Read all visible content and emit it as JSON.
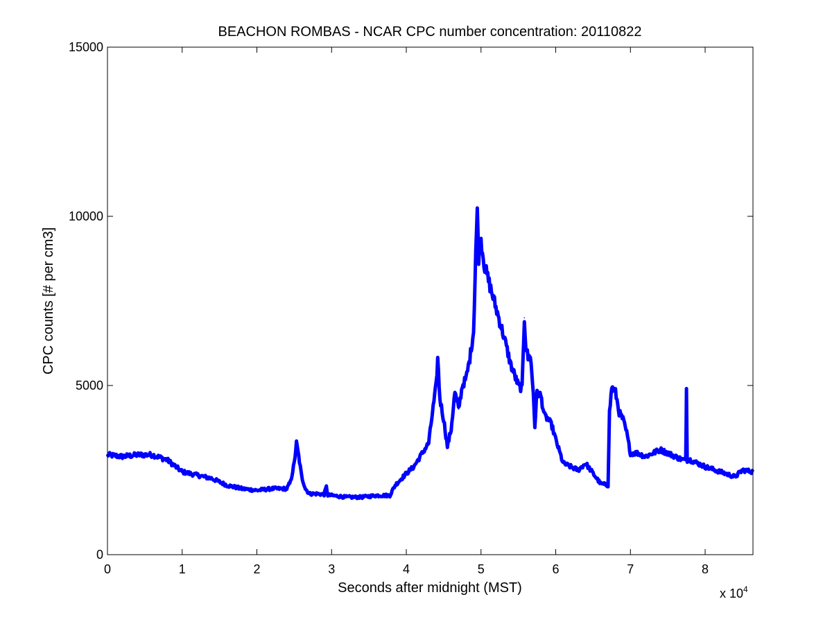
{
  "chart_data": {
    "type": "line",
    "title": "BEACHON ROMBAS - NCAR CPC number concentration: 20110822",
    "xlabel": "Seconds after midnight (MST)",
    "ylabel": "CPC counts [# per cm3]",
    "x_multiplier_label": "x 10",
    "x_multiplier_exponent": "4",
    "xlim": [
      0,
      8.64
    ],
    "ylim": [
      0,
      15000
    ],
    "xticks": [
      0,
      1,
      2,
      3,
      4,
      5,
      6,
      7,
      8
    ],
    "yticks": [
      0,
      5000,
      10000,
      15000
    ],
    "grid": false,
    "line_color": "#0000ff",
    "series": [
      {
        "x": [
          0.0,
          0.2,
          0.4,
          0.6,
          0.8,
          1.0,
          1.2,
          1.4,
          1.6,
          1.8,
          2.0,
          2.2,
          2.4,
          2.45,
          2.5,
          2.53,
          2.56,
          2.6,
          2.65,
          2.7,
          2.8,
          2.9,
          2.93,
          2.95,
          3.0,
          3.2,
          3.4,
          3.6,
          3.78,
          3.85,
          4.0,
          4.1,
          4.2,
          4.3,
          4.35,
          4.4,
          4.42,
          4.45,
          4.5,
          4.55,
          4.6,
          4.65,
          4.7,
          4.75,
          4.8,
          4.85,
          4.9,
          4.93,
          4.95,
          4.97,
          5.0,
          5.05,
          5.1,
          5.2,
          5.3,
          5.4,
          5.5,
          5.55,
          5.58,
          5.6,
          5.63,
          5.66,
          5.7,
          5.72,
          5.75,
          5.8,
          5.85,
          5.9,
          5.95,
          6.0,
          6.1,
          6.3,
          6.4,
          6.5,
          6.6,
          6.7,
          6.72,
          6.75,
          6.8,
          6.85,
          6.9,
          6.95,
          7.0,
          7.1,
          7.2,
          7.4,
          7.6,
          7.7,
          7.74,
          7.75,
          7.76,
          7.8,
          8.0,
          8.2,
          8.4,
          8.5,
          8.64
        ],
        "y": [
          2950,
          2900,
          2950,
          2950,
          2800,
          2450,
          2350,
          2250,
          2050,
          1950,
          1900,
          1950,
          1950,
          2150,
          2700,
          3300,
          2900,
          2300,
          1950,
          1800,
          1800,
          1780,
          2000,
          1760,
          1750,
          1700,
          1700,
          1750,
          1750,
          2050,
          2400,
          2600,
          2950,
          3300,
          4200,
          5000,
          5800,
          4600,
          4000,
          3200,
          3700,
          4800,
          4300,
          5000,
          5200,
          5800,
          6600,
          9000,
          10100,
          8800,
          9300,
          8500,
          8100,
          7300,
          6500,
          5600,
          5000,
          4900,
          7000,
          6200,
          5800,
          5900,
          4800,
          3800,
          4800,
          4700,
          4100,
          4000,
          3800,
          3400,
          2700,
          2500,
          2700,
          2400,
          2100,
          2050,
          4200,
          4950,
          4800,
          4200,
          4000,
          3600,
          3000,
          3000,
          2900,
          3100,
          2900,
          2800,
          2800,
          4900,
          2800,
          2800,
          2600,
          2450,
          2300,
          2500,
          2450
        ]
      }
    ]
  }
}
